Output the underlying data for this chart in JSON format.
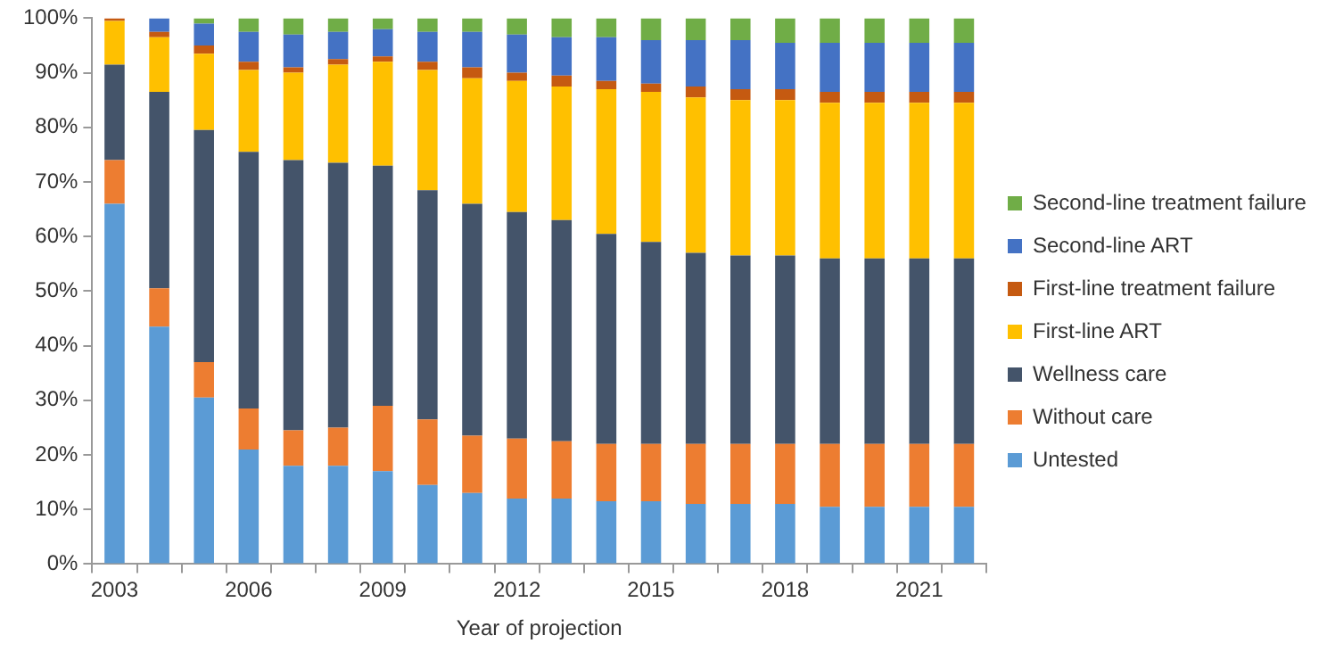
{
  "chart_data": {
    "type": "bar",
    "stacked": true,
    "xlabel": "Year of projection",
    "categories": [
      "2003",
      null,
      null,
      "2006",
      null,
      null,
      "2009",
      null,
      null,
      "2012",
      null,
      null,
      "2015",
      null,
      null,
      "2018",
      null,
      null,
      "2021",
      null
    ],
    "ylim": [
      0,
      100
    ],
    "yticks": [
      {
        "value": 0,
        "label": "0%"
      },
      {
        "value": 10,
        "label": "10%"
      },
      {
        "value": 20,
        "label": "20%"
      },
      {
        "value": 30,
        "label": "30%"
      },
      {
        "value": 40,
        "label": "40%"
      },
      {
        "value": 50,
        "label": "50%"
      },
      {
        "value": 60,
        "label": "60%"
      },
      {
        "value": 70,
        "label": "70%"
      },
      {
        "value": 80,
        "label": "80%"
      },
      {
        "value": 90,
        "label": "90%"
      },
      {
        "value": 100,
        "label": "100%"
      }
    ],
    "grid": false,
    "legend": "right",
    "series": [
      {
        "name": "Untested",
        "color": "#5b9bd5",
        "values": [
          66,
          43.5,
          30.5,
          21,
          18,
          18,
          17,
          14.5,
          13,
          12,
          12,
          11.5,
          11.5,
          11,
          11,
          11,
          10.5,
          10.5,
          10.5,
          10.5
        ]
      },
      {
        "name": "Without care",
        "color": "#ed7d31",
        "values": [
          8,
          7,
          6.5,
          7.5,
          6.5,
          7,
          12,
          12,
          10.5,
          11,
          10.5,
          10.5,
          10.5,
          11,
          11,
          11,
          11.5,
          11.5,
          11.5,
          11.5
        ]
      },
      {
        "name": "Wellness care",
        "color": "#44546a",
        "values": [
          17.5,
          36,
          42.5,
          47,
          49.5,
          48.5,
          44,
          42,
          42.5,
          41.5,
          40.5,
          38.5,
          37,
          35,
          34.5,
          34.5,
          34,
          34,
          34,
          34
        ]
      },
      {
        "name": "First-line ART",
        "color": "#ffc000",
        "values": [
          8,
          10,
          14,
          15,
          16,
          18,
          19,
          22,
          23,
          24,
          24.5,
          26.5,
          27.5,
          28.5,
          28.5,
          28.5,
          28.5,
          28.5,
          28.5,
          28.5
        ]
      },
      {
        "name": "First-line treatment failure",
        "color": "#c55a11",
        "values": [
          0.5,
          1,
          1.5,
          1.5,
          1,
          1,
          1,
          1.5,
          2,
          1.5,
          2,
          1.5,
          1.5,
          2,
          2,
          2,
          2,
          2,
          2,
          2
        ]
      },
      {
        "name": "Second-line ART",
        "color": "#4472c4",
        "values": [
          0,
          2.5,
          4,
          5.5,
          6,
          5,
          5,
          5.5,
          6.5,
          7,
          7,
          8,
          8,
          8.5,
          9,
          8.5,
          9,
          9,
          9,
          9
        ]
      },
      {
        "name": "Second-line treatment failure",
        "color": "#70ad47",
        "values": [
          0,
          0,
          1,
          2.5,
          3,
          2.5,
          2,
          2.5,
          2.5,
          3,
          3.5,
          3.5,
          4,
          4,
          4,
          4.5,
          4.5,
          4.5,
          4.5,
          4.5
        ]
      }
    ]
  }
}
